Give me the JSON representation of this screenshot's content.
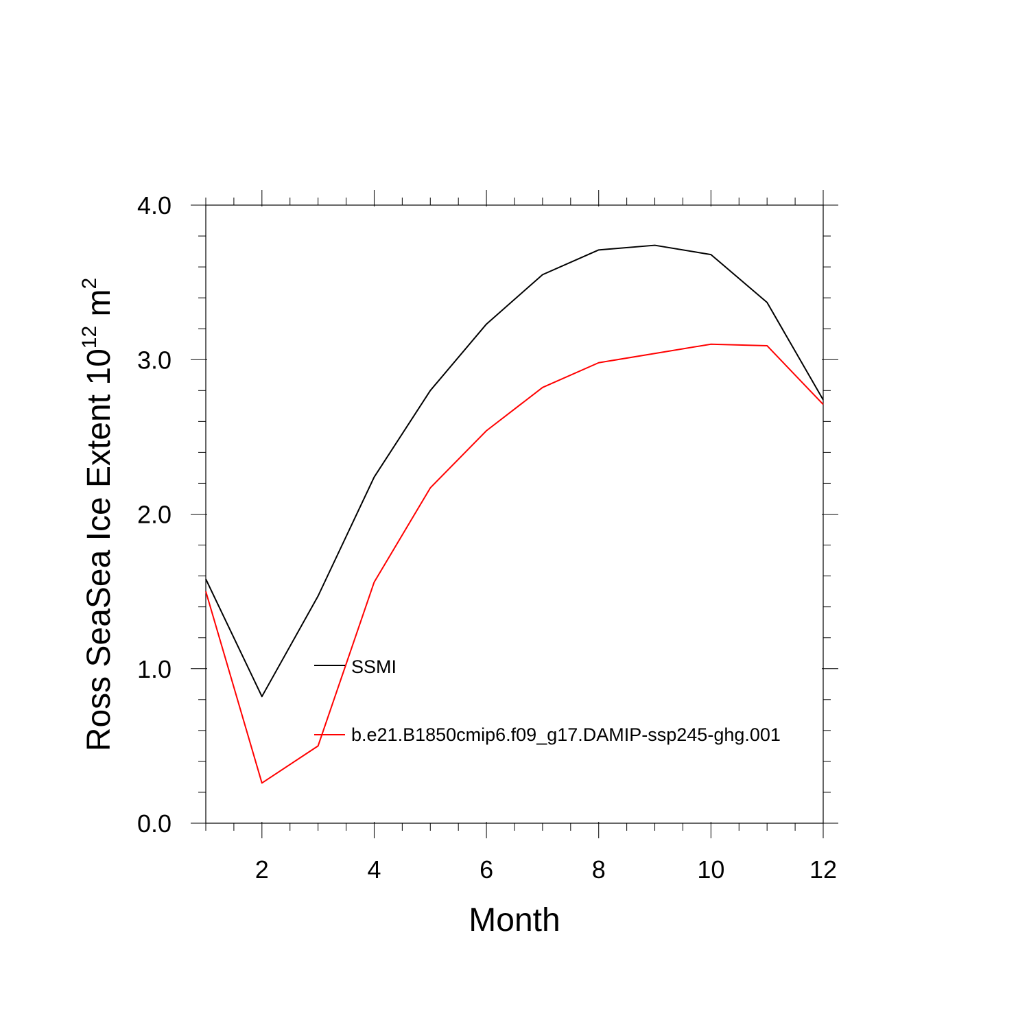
{
  "chart_data": {
    "type": "line",
    "xlabel": "Month",
    "ylabel": "Ross SeaSea Ice Extent 10",
    "ylabel_exp": "12",
    "ylabel_unit": " m",
    "ylabel_unit_exp": "2",
    "xlim": [
      1,
      12
    ],
    "ylim": [
      0,
      4
    ],
    "x_ticks": [
      2,
      4,
      6,
      8,
      10,
      12
    ],
    "x_tick_labels": [
      "2",
      "4",
      "6",
      "8",
      "10",
      "12"
    ],
    "y_ticks": [
      0,
      1,
      2,
      3,
      4
    ],
    "y_tick_labels": [
      "0.0",
      "1.0",
      "2.0",
      "3.0",
      "4.0"
    ],
    "grid": false,
    "legend_position": "center",
    "x": [
      1,
      2,
      3,
      4,
      5,
      6,
      7,
      8,
      9,
      10,
      11,
      12
    ],
    "series": [
      {
        "name": "SSMI",
        "color": "#000000",
        "values": [
          1.58,
          0.82,
          1.47,
          2.24,
          2.8,
          3.23,
          3.55,
          3.71,
          3.74,
          3.68,
          3.37,
          2.74
        ]
      },
      {
        "name": "b.e21.B1850cmip6.f09_g17.DAMIP-ssp245-ghg.001",
        "color": "#ff0000",
        "values": [
          1.5,
          0.26,
          0.5,
          1.56,
          2.17,
          2.54,
          2.82,
          2.98,
          3.04,
          3.1,
          3.09,
          2.71
        ]
      }
    ]
  }
}
